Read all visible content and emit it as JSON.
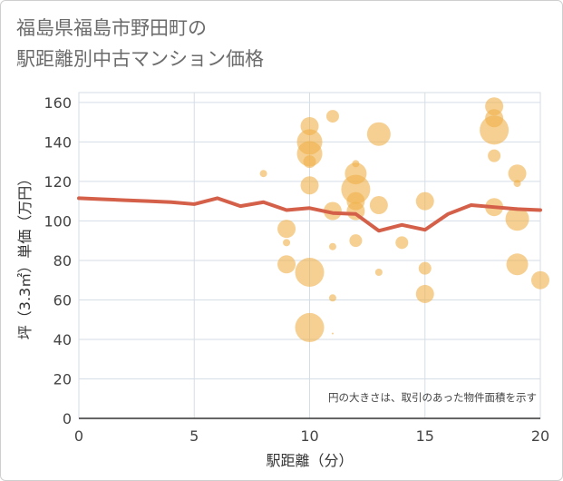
{
  "title": {
    "line1": "福島県福島市野田町の",
    "line2": "駅距離別中古マンション価格"
  },
  "chart_data": {
    "type": "scatter",
    "title": "福島県福島市野田町の駅距離別中古マンション価格",
    "xlabel": "駅距離（分）",
    "ylabel": "坪（3.3㎡）単価（万円）",
    "xlim": [
      0,
      20
    ],
    "ylim": [
      0,
      165
    ],
    "xticks": [
      0,
      5,
      10,
      15,
      20
    ],
    "yticks": [
      0,
      20,
      40,
      60,
      80,
      100,
      120,
      140,
      160
    ],
    "grid": true,
    "annotation": "円の大きさは、取引のあった物件面積を示す",
    "colors": {
      "bubble": "#f0b04a",
      "line": "#d4604a",
      "grid": "#d5dde6"
    },
    "series": [
      {
        "type": "bubble",
        "points": [
          {
            "x": 8,
            "y": 124,
            "s": 4
          },
          {
            "x": 9,
            "y": 96,
            "s": 10
          },
          {
            "x": 9,
            "y": 89,
            "s": 4
          },
          {
            "x": 9,
            "y": 78,
            "s": 10
          },
          {
            "x": 10,
            "y": 148,
            "s": 10
          },
          {
            "x": 10,
            "y": 140,
            "s": 14
          },
          {
            "x": 10,
            "y": 134,
            "s": 14
          },
          {
            "x": 10,
            "y": 130,
            "s": 7
          },
          {
            "x": 10,
            "y": 118,
            "s": 10
          },
          {
            "x": 10,
            "y": 74,
            "s": 16
          },
          {
            "x": 10,
            "y": 46,
            "s": 16
          },
          {
            "x": 11,
            "y": 153,
            "s": 7
          },
          {
            "x": 11,
            "y": 105,
            "s": 10
          },
          {
            "x": 11,
            "y": 87,
            "s": 4
          },
          {
            "x": 11,
            "y": 61,
            "s": 4
          },
          {
            "x": 11,
            "y": 43,
            "s": 1
          },
          {
            "x": 12,
            "y": 129,
            "s": 4
          },
          {
            "x": 12,
            "y": 124,
            "s": 12
          },
          {
            "x": 12,
            "y": 116,
            "s": 16
          },
          {
            "x": 12,
            "y": 110,
            "s": 10
          },
          {
            "x": 12,
            "y": 105,
            "s": 10
          },
          {
            "x": 12,
            "y": 90,
            "s": 7
          },
          {
            "x": 13,
            "y": 144,
            "s": 13
          },
          {
            "x": 13,
            "y": 108,
            "s": 10
          },
          {
            "x": 13,
            "y": 74,
            "s": 4
          },
          {
            "x": 14,
            "y": 89,
            "s": 7
          },
          {
            "x": 15,
            "y": 110,
            "s": 10
          },
          {
            "x": 15,
            "y": 76,
            "s": 7
          },
          {
            "x": 15,
            "y": 63,
            "s": 10
          },
          {
            "x": 18,
            "y": 158,
            "s": 10
          },
          {
            "x": 18,
            "y": 152,
            "s": 10
          },
          {
            "x": 18,
            "y": 146,
            "s": 16
          },
          {
            "x": 18,
            "y": 133,
            "s": 7
          },
          {
            "x": 18,
            "y": 107,
            "s": 10
          },
          {
            "x": 19,
            "y": 124,
            "s": 10
          },
          {
            "x": 19,
            "y": 119,
            "s": 4
          },
          {
            "x": 19,
            "y": 101,
            "s": 13
          },
          {
            "x": 19,
            "y": 78,
            "s": 12
          },
          {
            "x": 20,
            "y": 70,
            "s": 10
          }
        ]
      },
      {
        "type": "line",
        "x": [
          0,
          1,
          2,
          3,
          4,
          5,
          6,
          7,
          8,
          9,
          10,
          11,
          12,
          13,
          14,
          15,
          16,
          17,
          18,
          19,
          20
        ],
        "y": [
          111.5,
          111,
          110.5,
          110,
          109.5,
          108.5,
          111.5,
          107.5,
          109.5,
          105.5,
          106.5,
          104,
          103.5,
          95,
          98,
          95.5,
          103.5,
          108,
          107,
          106,
          105.5
        ]
      }
    ]
  }
}
